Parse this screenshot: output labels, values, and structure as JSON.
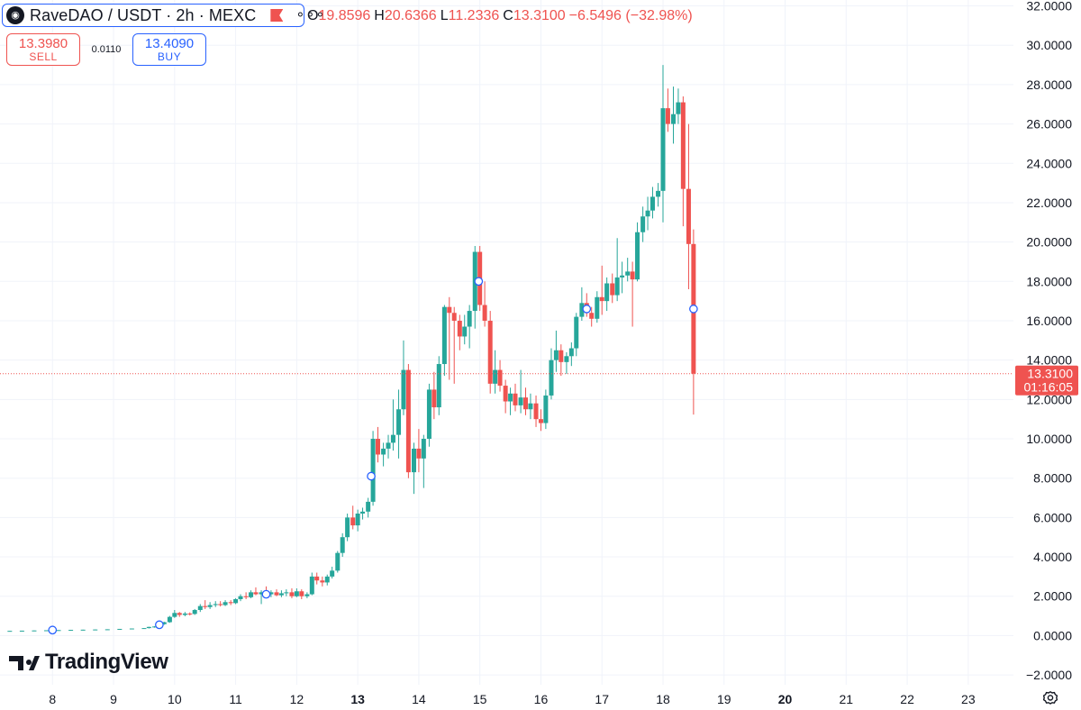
{
  "header": {
    "symbol_title": "RaveDAO / USDT · 2h · MEXC",
    "logo_icon": "ravedao-logo-icon",
    "flag_icon": "flag-icon",
    "more_icon": "more-horizontal-icon",
    "ohlc": {
      "open_label": "O",
      "open_value": "19.8596",
      "high_label": "H",
      "high_value": "20.6366",
      "low_label": "L",
      "low_value": "11.2336",
      "close_label": "C",
      "close_value": "13.3100",
      "change": "−6.5496 (−32.98%)"
    }
  },
  "trade": {
    "sell_price": "13.3980",
    "sell_label": "SELL",
    "spread": "0.0110",
    "buy_price": "13.4090",
    "buy_label": "BUY"
  },
  "brand": {
    "name": "TradingView",
    "icon": "tradingview-logo-icon"
  },
  "footer": {
    "settings_icon": "settings-icon"
  },
  "colors": {
    "up": "#26a69a",
    "down": "#ef5350",
    "grid": "#f0f3fa",
    "text": "#131722",
    "axis_text": "#131722",
    "accent": "#2962ff",
    "price_label_bg": "#ef5350"
  },
  "chart_data": {
    "type": "candlestick",
    "title": "RaveDAO / USDT · 2h · MEXC",
    "yaxis": {
      "ticks": [
        32,
        30,
        28,
        26,
        24,
        22,
        20,
        18,
        16,
        14,
        12,
        10,
        8,
        6,
        4,
        2,
        0,
        -2
      ],
      "tick_labels": [
        "32.0000",
        "30.0000",
        "28.0000",
        "26.0000",
        "24.0000",
        "22.0000",
        "20.0000",
        "18.0000",
        "16.0000",
        "14.0000",
        "12.0000",
        "10.0000",
        "8.0000",
        "6.0000",
        "4.0000",
        "2.0000",
        "0.0000",
        "−2.0000"
      ],
      "range": [
        -2.5,
        32.3
      ]
    },
    "xaxis": {
      "ticks": [
        8,
        9,
        10,
        11,
        12,
        13,
        14,
        15,
        16,
        17,
        18,
        19,
        20,
        21,
        22,
        23
      ],
      "tick_labels": [
        "8",
        "9",
        "10",
        "11",
        "12",
        "13",
        "14",
        "15",
        "16",
        "17",
        "18",
        "19",
        "20",
        "21",
        "22",
        "23"
      ],
      "bold_ticks": [
        "13",
        "20"
      ],
      "range": [
        7.14,
        23.74
      ]
    },
    "current_price": {
      "value": 13.31,
      "label": "13.3100",
      "countdown": "01:16:05"
    },
    "event_markers": [
      {
        "x": 8.0,
        "y": 0.28
      },
      {
        "x": 9.75,
        "y": 0.55
      },
      {
        "x": 11.5,
        "y": 2.1
      },
      {
        "x": 13.22,
        "y": 8.1
      },
      {
        "x": 14.98,
        "y": 18.0
      },
      {
        "x": 16.75,
        "y": 16.6
      },
      {
        "x": 18.5,
        "y": 16.6
      }
    ],
    "candles": [
      [
        7.1,
        0.23,
        0.24,
        0.22,
        0.24
      ],
      [
        7.3,
        0.24,
        0.24,
        0.23,
        0.24
      ],
      [
        7.5,
        0.24,
        0.25,
        0.23,
        0.25
      ],
      [
        7.7,
        0.25,
        0.26,
        0.24,
        0.26
      ],
      [
        7.9,
        0.26,
        0.27,
        0.25,
        0.27
      ],
      [
        8.1,
        0.27,
        0.28,
        0.26,
        0.28
      ],
      [
        8.3,
        0.28,
        0.29,
        0.27,
        0.29
      ],
      [
        8.5,
        0.29,
        0.3,
        0.28,
        0.3
      ],
      [
        8.7,
        0.3,
        0.31,
        0.29,
        0.31
      ],
      [
        8.9,
        0.31,
        0.32,
        0.3,
        0.32
      ],
      [
        9.1,
        0.32,
        0.34,
        0.31,
        0.34
      ],
      [
        9.3,
        0.34,
        0.36,
        0.33,
        0.36
      ],
      [
        9.5,
        0.36,
        0.38,
        0.35,
        0.38
      ],
      [
        9.58,
        0.38,
        0.45,
        0.36,
        0.44
      ],
      [
        9.67,
        0.44,
        0.48,
        0.4,
        0.46
      ],
      [
        9.75,
        0.46,
        0.6,
        0.44,
        0.58
      ],
      [
        9.83,
        0.58,
        0.7,
        0.55,
        0.68
      ],
      [
        9.92,
        0.68,
        1.0,
        0.65,
        0.95
      ],
      [
        10.0,
        0.95,
        1.3,
        0.9,
        1.15
      ],
      [
        10.08,
        1.15,
        1.2,
        0.95,
        1.05
      ],
      [
        10.17,
        1.05,
        1.2,
        0.98,
        1.12
      ],
      [
        10.25,
        1.12,
        1.18,
        1.02,
        1.1
      ],
      [
        10.33,
        1.1,
        1.35,
        1.05,
        1.3
      ],
      [
        10.42,
        1.3,
        1.6,
        1.2,
        1.5
      ],
      [
        10.5,
        1.5,
        1.8,
        1.35,
        1.45
      ],
      [
        10.58,
        1.45,
        1.7,
        1.35,
        1.55
      ],
      [
        10.67,
        1.55,
        1.75,
        1.45,
        1.6
      ],
      [
        10.75,
        1.6,
        1.75,
        1.48,
        1.55
      ],
      [
        10.83,
        1.55,
        1.8,
        1.5,
        1.7
      ],
      [
        10.92,
        1.7,
        1.8,
        1.55,
        1.65
      ],
      [
        11.0,
        1.65,
        1.9,
        1.6,
        1.85
      ],
      [
        11.08,
        1.85,
        2.1,
        1.75,
        2.0
      ],
      [
        11.17,
        2.0,
        2.2,
        1.85,
        1.95
      ],
      [
        11.25,
        1.95,
        2.3,
        1.9,
        2.2
      ],
      [
        11.33,
        2.2,
        2.45,
        2.05,
        2.1
      ],
      [
        11.42,
        2.1,
        2.3,
        1.6,
        2.2
      ],
      [
        11.5,
        2.2,
        2.5,
        2.0,
        2.1
      ],
      [
        11.58,
        2.1,
        2.3,
        1.95,
        2.2
      ],
      [
        11.67,
        2.2,
        2.35,
        2.0,
        2.05
      ],
      [
        11.75,
        2.05,
        2.3,
        1.95,
        2.15
      ],
      [
        11.83,
        2.15,
        2.35,
        2.0,
        2.2
      ],
      [
        11.92,
        2.2,
        2.4,
        1.9,
        2.0
      ],
      [
        12.0,
        2.0,
        2.4,
        1.95,
        2.25
      ],
      [
        12.08,
        2.25,
        2.35,
        1.85,
        2.0
      ],
      [
        12.17,
        2.0,
        2.2,
        1.9,
        2.1
      ],
      [
        12.25,
        2.1,
        3.2,
        2.05,
        3.0
      ],
      [
        12.33,
        3.0,
        3.2,
        2.6,
        2.8
      ],
      [
        12.42,
        2.8,
        3.0,
        2.5,
        2.7
      ],
      [
        12.5,
        2.7,
        3.1,
        2.55,
        3.0
      ],
      [
        12.58,
        3.0,
        3.5,
        2.9,
        3.3
      ],
      [
        12.67,
        3.3,
        4.3,
        3.2,
        4.2
      ],
      [
        12.75,
        4.2,
        5.2,
        4.0,
        5.0
      ],
      [
        12.83,
        5.0,
        6.2,
        4.8,
        6.0
      ],
      [
        12.92,
        6.0,
        6.6,
        5.4,
        5.6
      ],
      [
        13.0,
        5.6,
        6.4,
        5.3,
        6.2
      ],
      [
        13.08,
        6.2,
        6.5,
        5.9,
        6.3
      ],
      [
        13.17,
        6.3,
        7.0,
        6.0,
        6.8
      ],
      [
        13.25,
        6.8,
        10.4,
        6.6,
        10.0
      ],
      [
        13.33,
        10.0,
        10.6,
        8.8,
        9.2
      ],
      [
        13.42,
        9.2,
        9.8,
        8.6,
        9.5
      ],
      [
        13.5,
        9.5,
        10.2,
        9.0,
        9.8
      ],
      [
        13.58,
        9.8,
        12.0,
        9.4,
        10.2
      ],
      [
        13.67,
        10.2,
        12.5,
        9.0,
        11.5
      ],
      [
        13.75,
        11.5,
        15.0,
        11.2,
        13.5
      ],
      [
        13.83,
        13.5,
        13.8,
        8.0,
        8.3
      ],
      [
        13.92,
        8.3,
        9.8,
        7.2,
        9.5
      ],
      [
        14.0,
        9.5,
        10.5,
        8.3,
        9.0
      ],
      [
        14.08,
        9.0,
        10.2,
        7.5,
        10.0
      ],
      [
        14.17,
        10.0,
        12.8,
        9.6,
        12.5
      ],
      [
        14.25,
        12.5,
        13.4,
        11.0,
        11.6
      ],
      [
        14.33,
        11.6,
        14.2,
        11.2,
        13.8
      ],
      [
        14.42,
        13.8,
        16.8,
        13.2,
        16.7
      ],
      [
        14.5,
        16.7,
        17.2,
        13.0,
        16.4
      ],
      [
        14.58,
        16.4,
        16.7,
        12.8,
        16.0
      ],
      [
        14.67,
        16.0,
        16.3,
        14.5,
        15.2
      ],
      [
        14.75,
        15.2,
        16.3,
        14.8,
        15.7
      ],
      [
        14.83,
        15.7,
        16.8,
        14.6,
        16.5
      ],
      [
        14.92,
        16.5,
        19.8,
        15.6,
        19.5
      ],
      [
        15.0,
        19.5,
        19.8,
        16.5,
        16.8
      ],
      [
        15.08,
        16.8,
        18.0,
        15.7,
        16.0
      ],
      [
        15.17,
        16.0,
        16.5,
        12.3,
        12.8
      ],
      [
        15.25,
        12.8,
        14.5,
        12.3,
        13.5
      ],
      [
        15.33,
        13.5,
        14.0,
        12.4,
        12.7
      ],
      [
        15.42,
        12.7,
        13.0,
        11.3,
        11.9
      ],
      [
        15.5,
        11.9,
        12.6,
        11.2,
        12.3
      ],
      [
        15.58,
        12.3,
        12.8,
        11.4,
        11.7
      ],
      [
        15.67,
        11.7,
        13.5,
        11.3,
        12.1
      ],
      [
        15.75,
        12.1,
        12.6,
        11.2,
        11.5
      ],
      [
        15.83,
        11.5,
        12.3,
        11.0,
        11.8
      ],
      [
        15.92,
        11.8,
        12.2,
        10.6,
        11.0
      ],
      [
        16.0,
        11.0,
        11.5,
        10.4,
        10.8
      ],
      [
        16.08,
        10.8,
        12.5,
        10.5,
        12.2
      ],
      [
        16.17,
        12.2,
        14.6,
        12.0,
        14.0
      ],
      [
        16.25,
        14.0,
        15.5,
        13.4,
        14.5
      ],
      [
        16.33,
        14.5,
        14.8,
        13.2,
        13.9
      ],
      [
        16.42,
        13.9,
        14.4,
        13.3,
        14.2
      ],
      [
        16.5,
        14.2,
        14.9,
        13.7,
        14.6
      ],
      [
        16.58,
        14.6,
        16.4,
        14.2,
        16.2
      ],
      [
        16.67,
        16.2,
        17.7,
        16.0,
        16.9
      ],
      [
        16.75,
        16.9,
        17.4,
        16.2,
        16.4
      ],
      [
        16.83,
        16.4,
        16.7,
        15.7,
        16.1
      ],
      [
        16.92,
        16.1,
        17.5,
        15.9,
        17.2
      ],
      [
        17.0,
        17.2,
        18.8,
        16.3,
        17.0
      ],
      [
        17.08,
        17.0,
        18.2,
        16.5,
        17.9
      ],
      [
        17.17,
        17.9,
        18.4,
        16.9,
        17.3
      ],
      [
        17.25,
        17.3,
        20.2,
        17.0,
        18.2
      ],
      [
        17.33,
        18.2,
        19.0,
        17.4,
        18.3
      ],
      [
        17.42,
        18.3,
        19.2,
        18.0,
        18.5
      ],
      [
        17.5,
        18.5,
        19.0,
        15.7,
        18.1
      ],
      [
        17.58,
        18.1,
        21.0,
        18.0,
        20.5
      ],
      [
        17.67,
        20.5,
        21.8,
        20.0,
        21.3
      ],
      [
        17.75,
        21.3,
        22.3,
        20.6,
        21.6
      ],
      [
        17.83,
        21.6,
        22.8,
        21.2,
        22.3
      ],
      [
        17.92,
        22.3,
        23.0,
        21.8,
        22.6
      ],
      [
        18.0,
        22.6,
        29.0,
        21.0,
        26.8
      ],
      [
        18.08,
        26.8,
        27.8,
        25.6,
        26.0
      ],
      [
        18.17,
        26.0,
        27.9,
        25.0,
        26.5
      ],
      [
        18.25,
        26.5,
        27.8,
        26.0,
        27.1
      ],
      [
        18.33,
        27.1,
        27.4,
        20.8,
        22.7
      ],
      [
        18.42,
        22.7,
        26.0,
        17.6,
        19.9
      ],
      [
        18.5,
        19.9,
        20.64,
        11.23,
        13.31
      ]
    ]
  }
}
